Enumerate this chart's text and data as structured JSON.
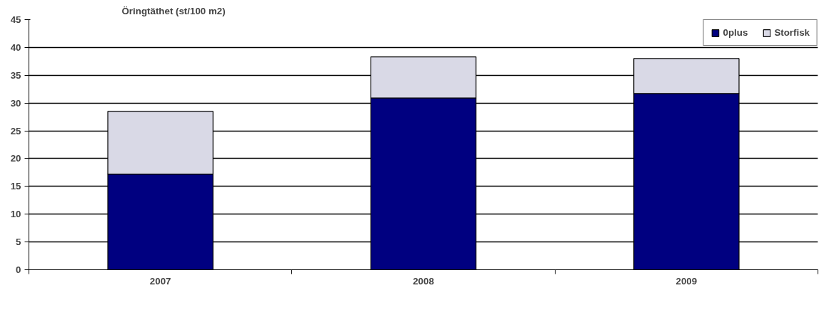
{
  "chart_data": {
    "type": "bar",
    "title": "Öringtäthet (st/100 m2)",
    "categories": [
      "2007",
      "2008",
      "2009"
    ],
    "series": [
      {
        "name": "0plus",
        "color": "#000080",
        "values": [
          17.2,
          30.9,
          31.7
        ]
      },
      {
        "name": "Storfisk",
        "color": "#d9d9e6",
        "values": [
          11.3,
          7.4,
          6.3
        ]
      }
    ],
    "stacked": true,
    "ylim": [
      0,
      45
    ],
    "yticks": [
      0,
      5,
      10,
      15,
      20,
      25,
      30,
      35,
      40,
      45
    ],
    "grid": "y",
    "legend": "top right"
  }
}
